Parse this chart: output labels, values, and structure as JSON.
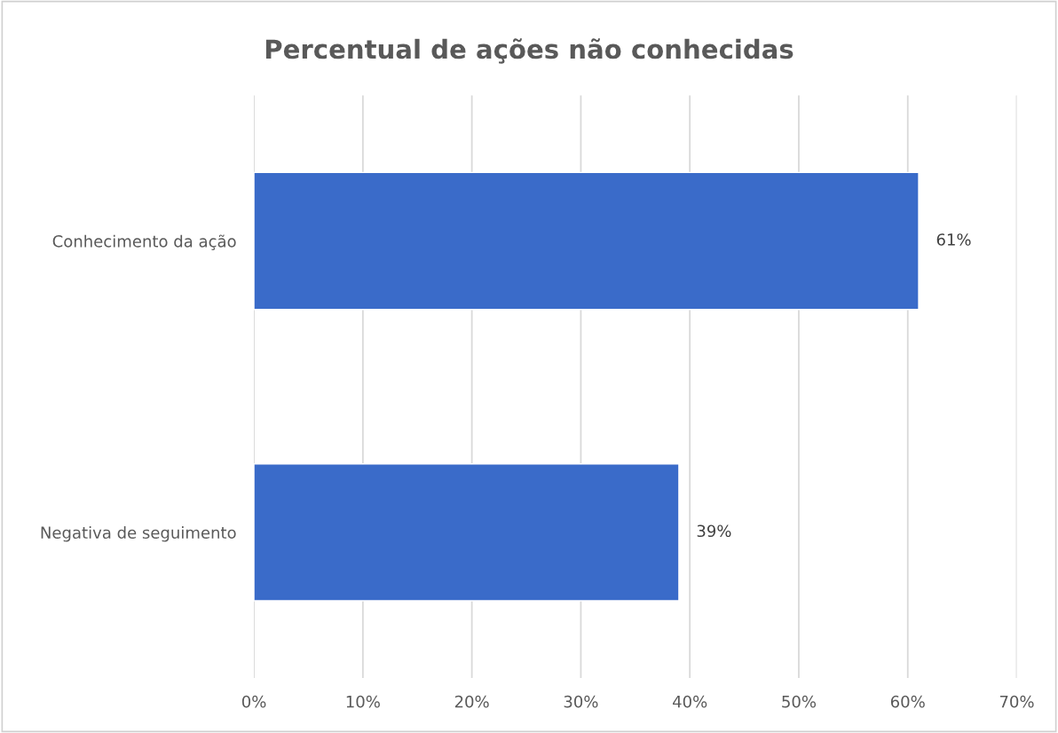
{
  "chart_data": {
    "type": "bar",
    "orientation": "horizontal",
    "title": "Percentual de ações não conhecidas",
    "categories": [
      "Conhecimento da ação",
      "Negativa de seguimento"
    ],
    "values": [
      61,
      39
    ],
    "color": "#3a6bc9",
    "value_labels": [
      "61%",
      "39%"
    ],
    "xlim": [
      0,
      70
    ],
    "xticks": [
      {
        "value": 0,
        "label": "0%"
      },
      {
        "value": 10,
        "label": "10%"
      },
      {
        "value": 20,
        "label": "20%"
      },
      {
        "value": 30,
        "label": "30%"
      },
      {
        "value": 40,
        "label": "40%"
      },
      {
        "value": 50,
        "label": "50%"
      },
      {
        "value": 60,
        "label": "60%"
      },
      {
        "value": 70,
        "label": "70%"
      }
    ],
    "grid": "x",
    "legend": false
  }
}
